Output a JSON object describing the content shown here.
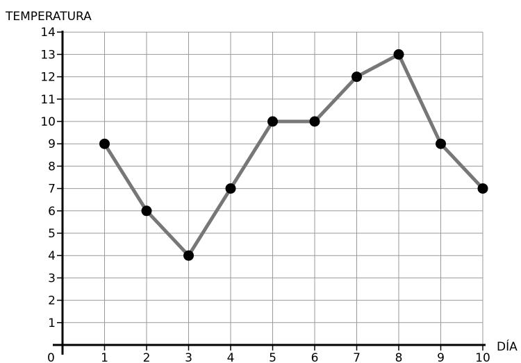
{
  "chart_data": {
    "type": "line",
    "ylabel": "TEMPERATURA",
    "xlabel": "DÍA",
    "origin_label": "0",
    "x": [
      1,
      2,
      3,
      4,
      5,
      6,
      7,
      8,
      9,
      10
    ],
    "y": [
      9,
      6,
      4,
      7,
      10,
      10,
      12,
      13,
      9,
      7
    ],
    "xlim": [
      0,
      10
    ],
    "ylim": [
      0,
      14
    ],
    "xticks": [
      1,
      2,
      3,
      4,
      5,
      6,
      7,
      8,
      9,
      10
    ],
    "yticks": [
      1,
      2,
      3,
      4,
      5,
      6,
      7,
      8,
      9,
      10,
      11,
      12,
      13,
      14
    ],
    "grid": true,
    "colors": {
      "line": "#777777",
      "marker": "#000000",
      "grid": "#999999",
      "axis": "#000000"
    }
  }
}
